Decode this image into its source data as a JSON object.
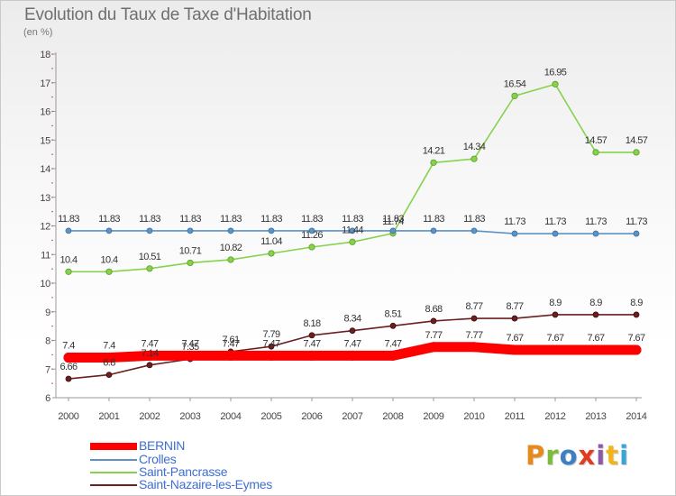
{
  "header": {
    "title": "Evolution du Taux de Taxe d'Habitation",
    "unit": "(en %)"
  },
  "brand": {
    "letters": [
      "P",
      "r",
      "o",
      "x",
      "i",
      "t",
      "i"
    ]
  },
  "chart_data": {
    "type": "line",
    "title": "Evolution du Taux de Taxe d'Habitation",
    "subtitle": "(en %)",
    "xlabel": "",
    "ylabel": "",
    "categories": [
      "2000",
      "2001",
      "2002",
      "2003",
      "2004",
      "2005",
      "2006",
      "2007",
      "2008",
      "2009",
      "2010",
      "2011",
      "2012",
      "2013",
      "2014"
    ],
    "ylim": [
      6,
      18
    ],
    "yticks": [
      6,
      7,
      8,
      9,
      10,
      11,
      12,
      13,
      14,
      15,
      16,
      17,
      18
    ],
    "grid": false,
    "legend": "bottom-left",
    "series": [
      {
        "name": "BERNIN",
        "color": "#ff0000",
        "values": [
          7.4,
          7.4,
          7.47,
          7.47,
          7.47,
          7.47,
          7.47,
          7.47,
          7.47,
          7.77,
          7.77,
          7.67,
          7.67,
          7.67,
          7.67
        ],
        "labels": [
          "7.4",
          "7.4",
          "7.47",
          "7.47",
          "7.47",
          "7.47",
          "7.47",
          "7.47",
          "7.47",
          "7.77",
          "7.77",
          "7.67",
          "7.67",
          "7.67",
          "7.67"
        ]
      },
      {
        "name": "Crolles",
        "color": "#5b93c8",
        "values": [
          11.83,
          11.83,
          11.83,
          11.83,
          11.83,
          11.83,
          11.83,
          11.83,
          11.83,
          11.83,
          11.83,
          11.73,
          11.73,
          11.73,
          11.73
        ],
        "labels": [
          "11.83",
          "11.83",
          "11.83",
          "11.83",
          "11.83",
          "11.83",
          "11.83",
          "11.83",
          "11.83",
          "11.83",
          "11.83",
          "11.73",
          "11.73",
          "11.73",
          "11.73"
        ]
      },
      {
        "name": "Saint-Pancrasse",
        "color": "#86d24c",
        "values": [
          10.4,
          10.4,
          10.51,
          10.71,
          10.82,
          11.04,
          11.26,
          11.44,
          11.74,
          14.21,
          14.34,
          16.54,
          16.95,
          14.57,
          14.57
        ],
        "labels": [
          "10.4",
          "10.4",
          "10.51",
          "10.71",
          "10.82",
          "11.04",
          "11.26",
          "11.44",
          "11.74",
          "14.21",
          "14.34",
          "16.54",
          "16.95",
          "14.57",
          "14.57"
        ]
      },
      {
        "name": "Saint-Nazaire-les-Eymes",
        "color": "#6b1f1f",
        "values": [
          6.66,
          6.8,
          7.14,
          7.35,
          7.61,
          7.79,
          8.18,
          8.34,
          8.51,
          8.68,
          8.77,
          8.77,
          8.9,
          8.9,
          8.9
        ],
        "labels": [
          "6.66",
          "6.8",
          "7.14",
          "7.35",
          "7.61",
          "7.79",
          "8.18",
          "8.34",
          "8.51",
          "8.68",
          "8.77",
          "8.77",
          "8.9",
          "8.9",
          "8.9"
        ]
      }
    ]
  }
}
